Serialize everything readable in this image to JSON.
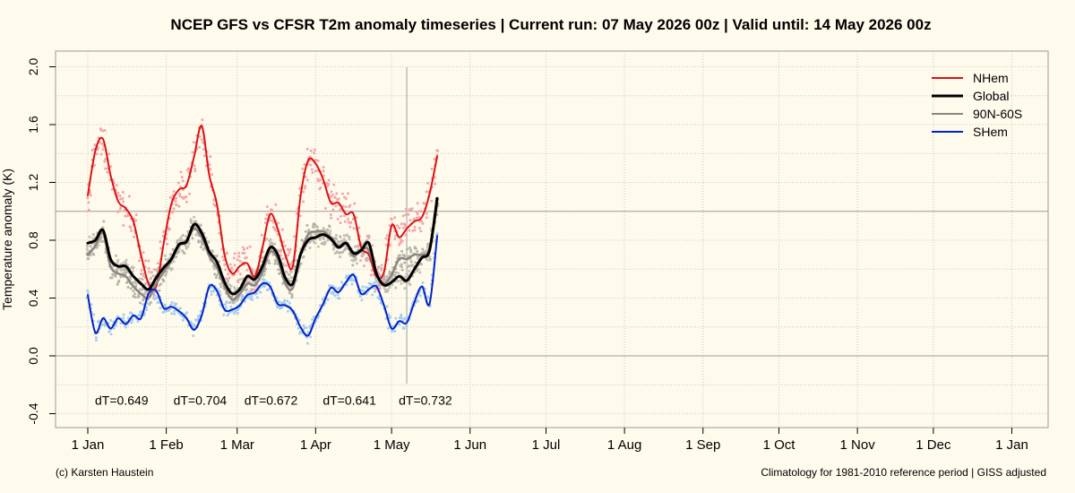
{
  "chart_data": {
    "type": "line",
    "title": "NCEP GFS vs CFSR T2m anomaly timeseries | Current run: 07 May 2026 00z | Valid until: 14 May 2026 00z",
    "ylabel": "Temperature anomaly (K)",
    "xlabel": "",
    "ylim": [
      -0.45,
      2.05
    ],
    "yticks": [
      "-0.4",
      "0.0",
      "0.4",
      "0.8",
      "1.2",
      "1.6",
      "2.0"
    ],
    "yticks_values": [
      -0.4,
      0.0,
      0.4,
      0.8,
      1.2,
      1.6,
      2.0
    ],
    "xticks": [
      "1 Jan",
      "1 Feb",
      "1 Mar",
      "1 Apr",
      "1 May",
      "1 Jun",
      "1 Jul",
      "1 Aug",
      "1 Sep",
      "1 Oct",
      "1 Nov",
      "1 Dec",
      "1 Jan"
    ],
    "xticks_day_of_year": [
      0,
      31,
      59,
      90,
      120,
      151,
      181,
      212,
      243,
      273,
      304,
      334,
      365
    ],
    "x_axis": "day of year 2026 (0 = 1 Jan)",
    "reference_lines_y": [
      0.0,
      1.0
    ],
    "current_run_day": 126,
    "grid": "dotted",
    "legend_position": "top-right",
    "series": [
      {
        "name": "NHem",
        "color": "#dd1111",
        "dotcolor": "#f4a6ae",
        "x": [
          0,
          3,
          6,
          9,
          12,
          15,
          18,
          21,
          24,
          27,
          30,
          33,
          36,
          39,
          42,
          45,
          48,
          51,
          54,
          57,
          60,
          63,
          66,
          69,
          72,
          75,
          78,
          81,
          84,
          87,
          90,
          93,
          96,
          99,
          102,
          105,
          108,
          111,
          114,
          117,
          120,
          123,
          126,
          129,
          132,
          135,
          138
        ],
        "values": [
          1.11,
          1.42,
          1.5,
          1.25,
          1.07,
          1.02,
          0.93,
          0.7,
          0.5,
          0.48,
          0.78,
          1.05,
          1.15,
          1.18,
          1.38,
          1.59,
          1.25,
          1.05,
          0.7,
          0.57,
          0.62,
          0.64,
          0.55,
          0.75,
          0.98,
          0.88,
          0.7,
          0.62,
          1.1,
          1.35,
          1.33,
          1.22,
          1.06,
          1.06,
          0.98,
          0.98,
          0.75,
          0.7,
          0.55,
          0.58,
          0.9,
          0.82,
          0.88,
          0.93,
          0.96,
          1.12,
          1.38
        ]
      },
      {
        "name": "Global",
        "color": "#000000",
        "dotcolor": "#c3c0b4",
        "x": [
          0,
          3,
          6,
          9,
          12,
          15,
          18,
          21,
          24,
          27,
          30,
          33,
          36,
          39,
          42,
          45,
          48,
          51,
          54,
          57,
          60,
          63,
          66,
          69,
          72,
          75,
          78,
          81,
          84,
          87,
          90,
          93,
          96,
          99,
          102,
          105,
          108,
          111,
          114,
          117,
          120,
          123,
          126,
          129,
          132,
          135,
          138
        ],
        "values": [
          0.78,
          0.8,
          0.87,
          0.67,
          0.62,
          0.62,
          0.55,
          0.5,
          0.46,
          0.54,
          0.61,
          0.67,
          0.77,
          0.79,
          0.91,
          0.85,
          0.72,
          0.65,
          0.51,
          0.43,
          0.46,
          0.55,
          0.53,
          0.62,
          0.75,
          0.7,
          0.54,
          0.5,
          0.7,
          0.8,
          0.82,
          0.84,
          0.81,
          0.75,
          0.78,
          0.71,
          0.73,
          0.78,
          0.57,
          0.49,
          0.51,
          0.55,
          0.52,
          0.6,
          0.68,
          0.73,
          1.09
        ]
      },
      {
        "name": "90N-60S",
        "color": "#8c8680",
        "dotcolor": "#b7b4aa",
        "x": [
          0,
          3,
          6,
          9,
          12,
          15,
          18,
          21,
          24,
          27,
          30,
          33,
          36,
          39,
          42,
          45,
          48,
          51,
          54,
          57,
          60,
          63,
          66,
          69,
          72,
          75,
          78,
          81,
          84,
          87,
          90,
          93,
          96,
          99,
          102,
          105,
          108,
          111,
          114,
          117,
          120,
          123,
          126,
          129,
          132,
          135,
          138
        ],
        "values": [
          0.7,
          0.76,
          0.85,
          0.62,
          0.57,
          0.55,
          0.48,
          0.43,
          0.4,
          0.5,
          0.58,
          0.66,
          0.76,
          0.8,
          0.88,
          0.82,
          0.69,
          0.61,
          0.48,
          0.39,
          0.43,
          0.5,
          0.49,
          0.58,
          0.72,
          0.67,
          0.5,
          0.47,
          0.7,
          0.84,
          0.86,
          0.86,
          0.82,
          0.76,
          0.78,
          0.69,
          0.74,
          0.73,
          0.57,
          0.5,
          0.56,
          0.67,
          0.67,
          0.7,
          0.7,
          0.74,
          1.05
        ]
      },
      {
        "name": "SHem",
        "color": "#0022cc",
        "dotcolor": "#a8cdec",
        "x": [
          0,
          3,
          6,
          9,
          12,
          15,
          18,
          21,
          24,
          27,
          30,
          33,
          36,
          39,
          42,
          45,
          48,
          51,
          54,
          57,
          60,
          63,
          66,
          69,
          72,
          75,
          78,
          81,
          84,
          87,
          90,
          93,
          96,
          99,
          102,
          105,
          108,
          111,
          114,
          117,
          120,
          123,
          126,
          129,
          132,
          135,
          138
        ],
        "values": [
          0.42,
          0.16,
          0.26,
          0.19,
          0.26,
          0.22,
          0.28,
          0.26,
          0.43,
          0.45,
          0.33,
          0.34,
          0.31,
          0.26,
          0.18,
          0.28,
          0.48,
          0.45,
          0.32,
          0.32,
          0.35,
          0.42,
          0.44,
          0.5,
          0.48,
          0.36,
          0.35,
          0.31,
          0.2,
          0.14,
          0.26,
          0.36,
          0.47,
          0.44,
          0.51,
          0.56,
          0.43,
          0.46,
          0.48,
          0.35,
          0.19,
          0.24,
          0.23,
          0.37,
          0.48,
          0.36,
          0.83
        ]
      }
    ],
    "annotations": [
      "dT=0.649",
      "dT=0.704",
      "dT=0.672",
      "dT=0.641",
      "dT=0.732"
    ],
    "annotation_y": -0.3,
    "annotation_x": [
      0,
      31,
      59,
      90,
      120
    ]
  },
  "footer": {
    "left": "(c) Karsten Haustein",
    "right": "Climatology for 1981-2010 reference period | GISS adjusted"
  }
}
